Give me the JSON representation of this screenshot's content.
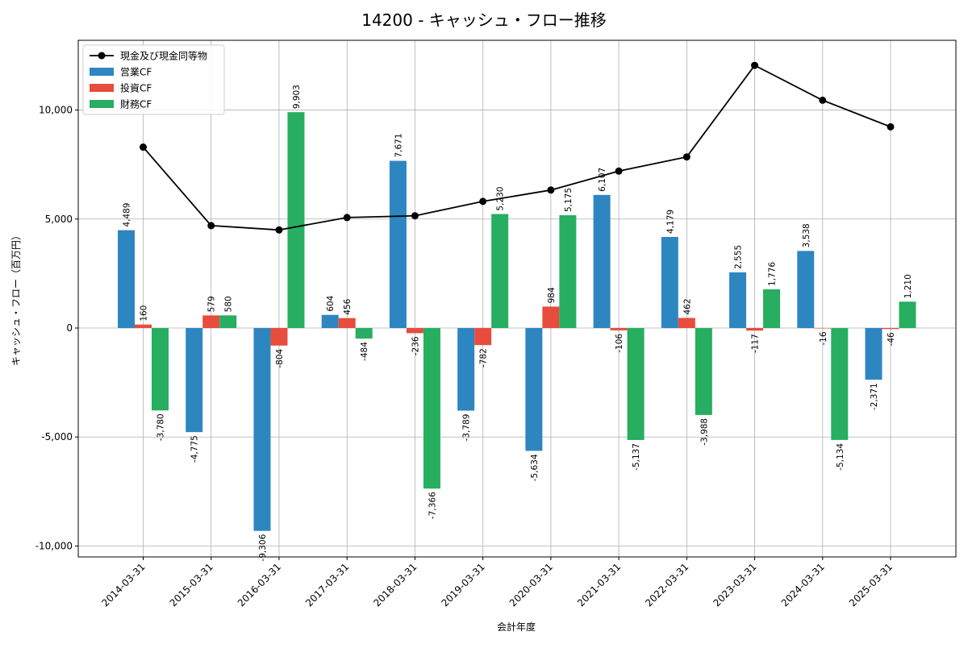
{
  "chart_data": {
    "type": "bar",
    "title": "14200 - キャッシュ・フロー推移",
    "xlabel": "会計年度",
    "ylabel": "キャッシュ・フロー（百万円）",
    "categories": [
      "2014-03-31",
      "2015-03-31",
      "2016-03-31",
      "2017-03-31",
      "2018-03-31",
      "2019-03-31",
      "2020-03-31",
      "2021-03-31",
      "2022-03-31",
      "2023-03-31",
      "2024-03-31",
      "2025-03-31"
    ],
    "series": [
      {
        "name": "営業CF",
        "kind": "bar",
        "color": "#2e86c1",
        "values": [
          4489,
          -4775,
          -9306,
          604,
          7671,
          -3789,
          -5634,
          6107,
          4179,
          2555,
          3538,
          -2371
        ]
      },
      {
        "name": "投資CF",
        "kind": "bar",
        "color": "#e74c3c",
        "values": [
          160,
          579,
          -804,
          456,
          -236,
          -782,
          984,
          -106,
          462,
          -117,
          -16,
          -46
        ]
      },
      {
        "name": "財務CF",
        "kind": "bar",
        "color": "#27ae60",
        "values": [
          -3780,
          580,
          9903,
          -484,
          -7366,
          5230,
          5175,
          -5137,
          -3988,
          1776,
          -5134,
          1210
        ]
      },
      {
        "name": "現金及び現金同等物",
        "kind": "line",
        "color": "#000000",
        "values": [
          8300,
          4700,
          4500,
          5070,
          5150,
          5810,
          6330,
          7200,
          7850,
          12050,
          10450,
          9230
        ]
      }
    ],
    "ylim": [
      -10500,
      13200
    ],
    "yticks": [
      -10000,
      -5000,
      0,
      5000,
      10000
    ],
    "ytick_labels": [
      "-10,000",
      "-5,000",
      "0",
      "5,000",
      "10,000"
    ],
    "grid": true,
    "legend_position": "top-left"
  }
}
